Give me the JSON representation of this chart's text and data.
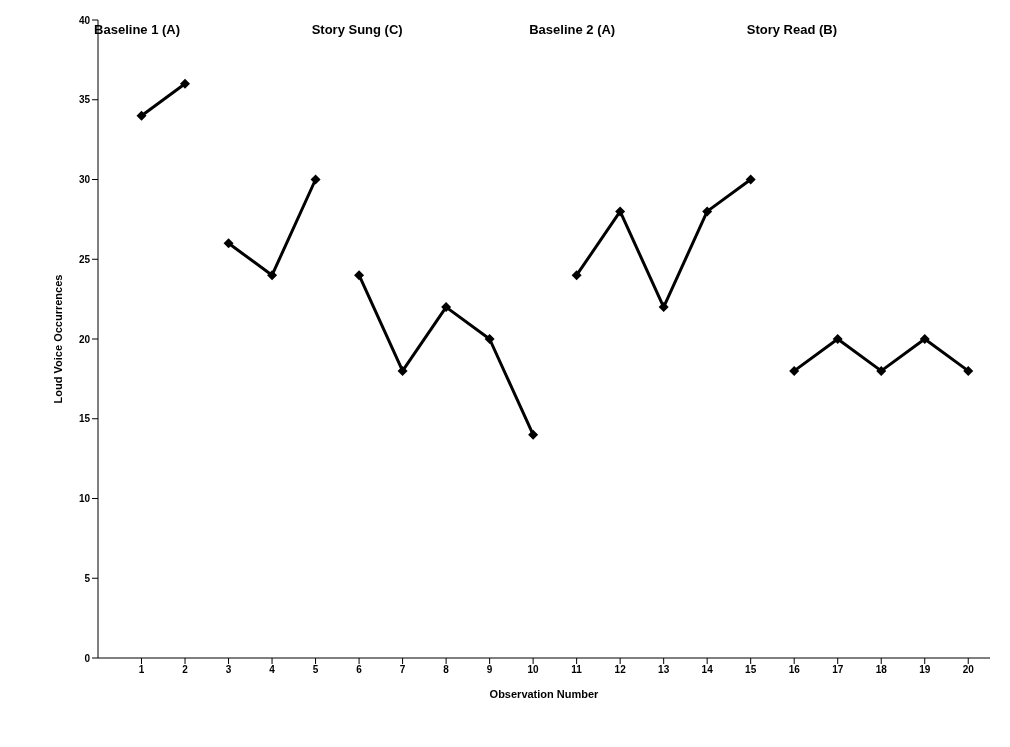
{
  "chart_data": {
    "type": "line",
    "xlabel": "Observation Number",
    "ylabel": "Loud Voice Occurrences",
    "annotations": [
      "Baseline 1 (A)",
      "Story Sung (C)",
      "Baseline 2 (A)",
      "Story Read (B)"
    ],
    "series": [
      {
        "color": "#000000",
        "x": [
          1,
          2
        ],
        "values": [
          34,
          36
        ]
      },
      {
        "color": "#000000",
        "x": [
          3,
          4,
          5
        ],
        "values": [
          26,
          24,
          30
        ]
      },
      {
        "color": "#000000",
        "x": [
          6,
          7,
          8,
          9,
          10
        ],
        "values": [
          24,
          18,
          22,
          20,
          14
        ]
      },
      {
        "color": "#000000",
        "x": [
          11,
          12,
          13,
          14,
          15
        ],
        "values": [
          24,
          28,
          22,
          28,
          30
        ]
      },
      {
        "color": "#000000",
        "x": [
          16,
          17,
          18,
          19,
          20
        ],
        "values": [
          18,
          20,
          18,
          20,
          18
        ]
      }
    ],
    "xlim": [
      0,
      20.5
    ],
    "xticks": [
      1,
      2,
      3,
      4,
      5,
      6,
      7,
      8,
      9,
      10,
      11,
      12,
      13,
      14,
      15,
      16,
      17,
      18,
      19,
      20
    ],
    "ylim": [
      0,
      40
    ],
    "yticks": [
      0,
      5,
      10,
      15,
      20,
      25,
      30,
      35,
      40
    ],
    "grid": false,
    "legend": false,
    "marker": "diamond",
    "line_style": "solid"
  }
}
